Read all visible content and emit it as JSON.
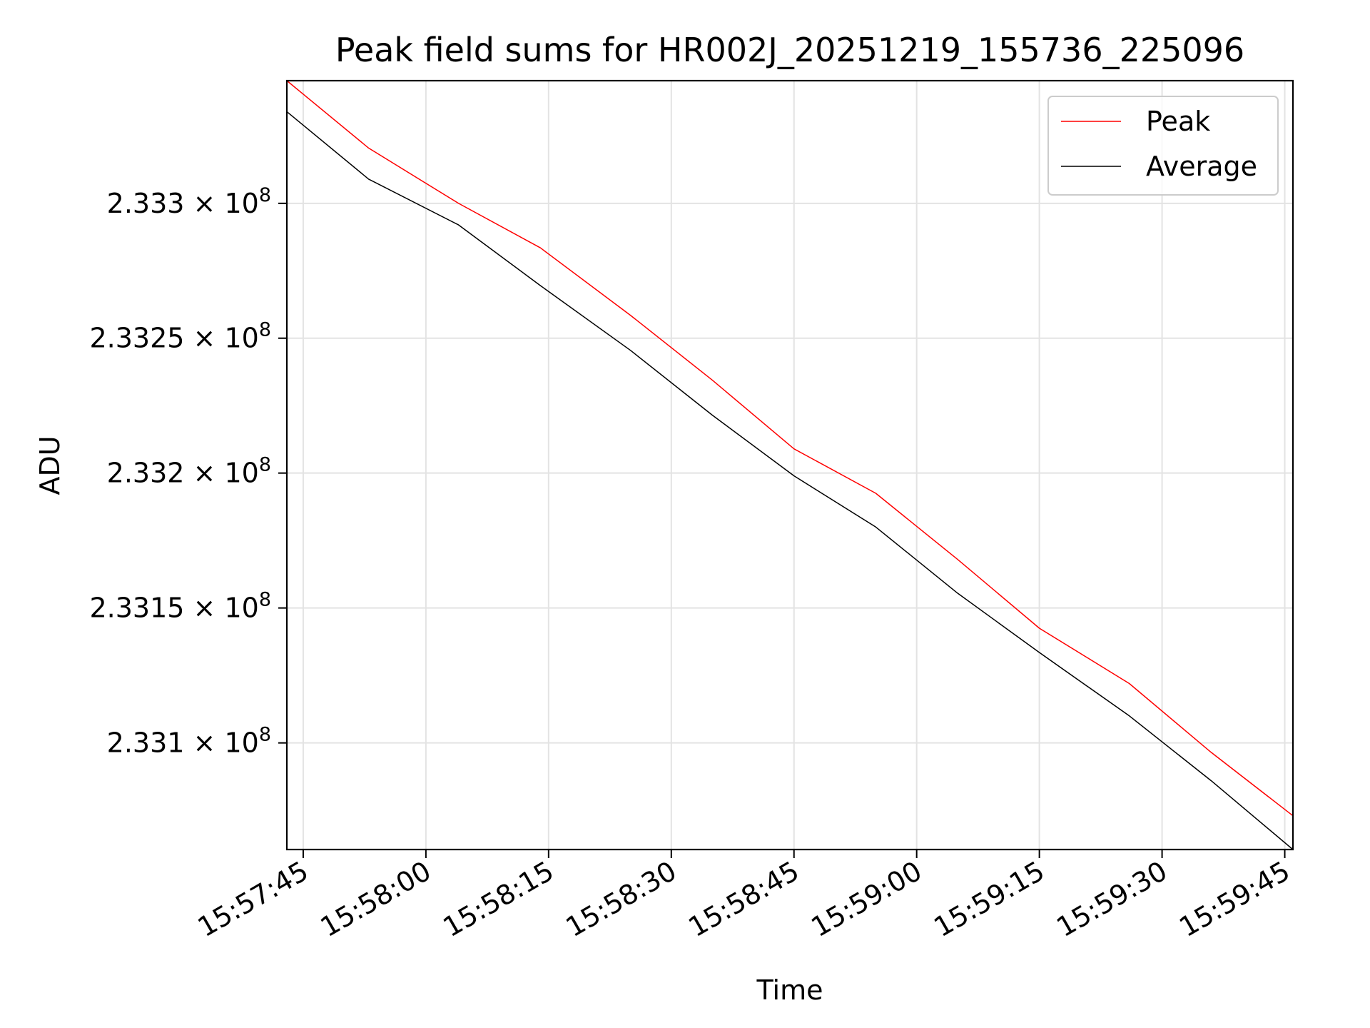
{
  "chart_data": {
    "type": "line",
    "title": "Peak field sums for HR002J_20251219_155736_225096",
    "xlabel": "Time",
    "ylabel": "ADU",
    "x_ticks": [
      "15:57:45",
      "15:58:00",
      "15:58:15",
      "15:58:30",
      "15:58:45",
      "15:59:00",
      "15:59:15",
      "15:59:30",
      "15:59:45"
    ],
    "y_ticks": [
      {
        "value": 233100000.0,
        "mantissa": "2.331",
        "base": "× 10",
        "exp": "8"
      },
      {
        "value": 233150000.0,
        "mantissa": "2.3315",
        "base": "× 10",
        "exp": "8"
      },
      {
        "value": 233200000.0,
        "mantissa": "2.332",
        "base": "× 10",
        "exp": "8"
      },
      {
        "value": 233250000.0,
        "mantissa": "2.3325",
        "base": "× 10",
        "exp": "8"
      },
      {
        "value": 233300000.0,
        "mantissa": "2.333",
        "base": "× 10",
        "exp": "8"
      }
    ],
    "xlim": [
      "15:57:43",
      "15:59:46"
    ],
    "ylim": [
      233060500,
      233345500
    ],
    "grid": true,
    "y_scale": "log",
    "legend_position": "top-right",
    "x": [
      "15:57:43",
      "15:57:53",
      "15:58:04",
      "15:58:14",
      "15:58:25",
      "15:58:35",
      "15:58:45",
      "15:58:55",
      "15:59:05",
      "15:59:15",
      "15:59:26",
      "15:59:36",
      "15:59:46"
    ],
    "series": [
      {
        "name": "Peak",
        "color": "#ff0000",
        "values": [
          233345500,
          233320500,
          233300000,
          233283500,
          233258500,
          233234500,
          233209000,
          233192500,
          233168000,
          233142500,
          233122000,
          233096500,
          233073000
        ]
      },
      {
        "name": "Average",
        "color": "#000000",
        "values": [
          233334000,
          233309000,
          233292000,
          233269500,
          233245500,
          233221500,
          233199000,
          233180000,
          233155500,
          233133500,
          233110000,
          233086000,
          233060500
        ]
      }
    ]
  }
}
